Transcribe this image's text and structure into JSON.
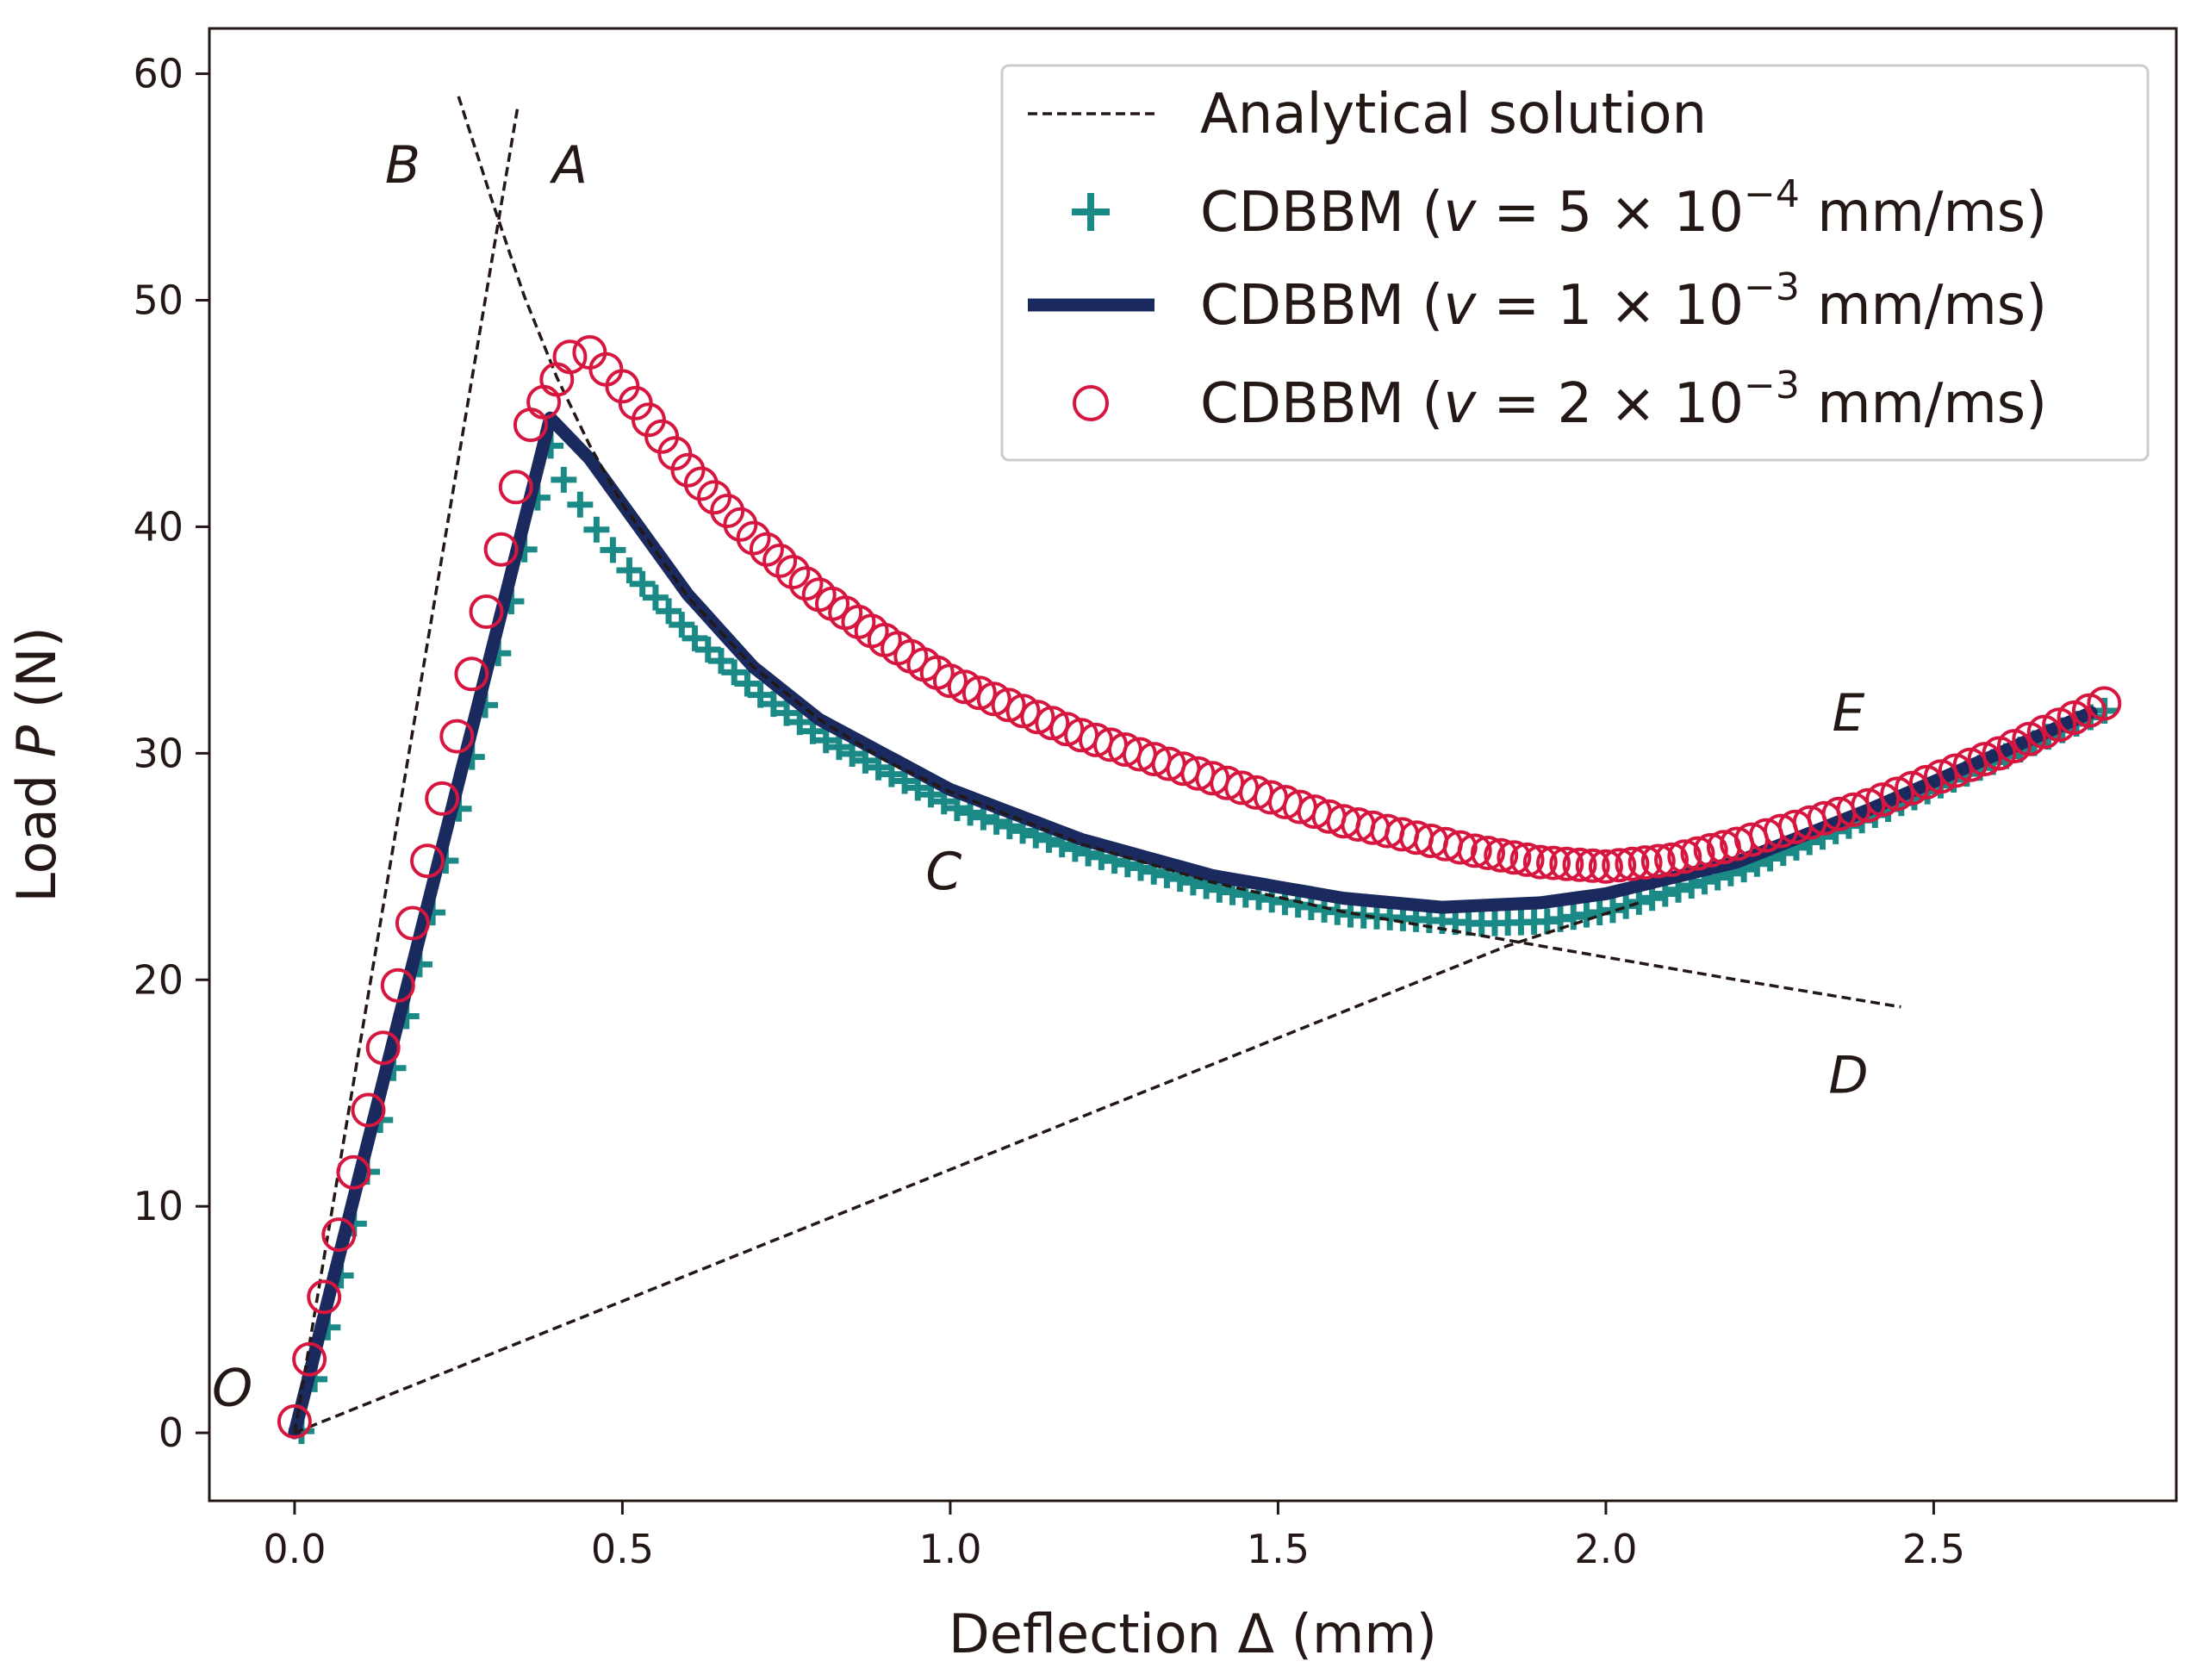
{
  "chart_data": {
    "type": "line",
    "title": "",
    "xlabel": "Deflection Δ (mm)",
    "ylabel_prefix": "Load ",
    "ylabel_var": "P",
    "ylabel_suffix": " (N)",
    "xlim": [
      -0.13,
      2.87
    ],
    "ylim": [
      -3,
      62
    ],
    "xticks": [
      0.0,
      0.5,
      1.0,
      1.5,
      2.0,
      2.5
    ],
    "xtick_labels": [
      "0.0",
      "0.5",
      "1.0",
      "1.5",
      "2.0",
      "2.5"
    ],
    "yticks": [
      0,
      10,
      20,
      30,
      40,
      50,
      60
    ],
    "ytick_labels": [
      "0",
      "10",
      "20",
      "30",
      "40",
      "50",
      "60"
    ],
    "legend_position": "top-right",
    "colors": {
      "analytical": "#231815",
      "slow": "#1b8a86",
      "mid": "#1a2a5e",
      "fast": "#d7163f",
      "axis": "#231815"
    },
    "point_labels": [
      {
        "text": "O",
        "x": -0.095,
        "y": 1.2
      },
      {
        "text": "B",
        "x": 0.165,
        "y": 55.2
      },
      {
        "text": "A",
        "x": 0.42,
        "y": 55.2
      },
      {
        "text": "C",
        "x": 0.99,
        "y": 24.0
      },
      {
        "text": "D",
        "x": 2.37,
        "y": 15.0
      },
      {
        "text": "E",
        "x": 2.37,
        "y": 31.0
      }
    ],
    "series": [
      {
        "name": "Analytical solution",
        "legend_text": "Analytical solution",
        "style": "dashed",
        "segments": [
          [
            [
              0.0,
              0.0
            ],
            [
              0.34,
              58.5
            ]
          ],
          [
            [
              0.25,
              59.0
            ],
            [
              0.3,
              54.5
            ],
            [
              0.35,
              50.2
            ],
            [
              0.4,
              46.6
            ],
            [
              0.45,
              43.6
            ],
            [
              0.5,
              41.0
            ],
            [
              0.6,
              36.9
            ],
            [
              0.7,
              33.8
            ],
            [
              0.8,
              31.5
            ],
            [
              0.9,
              29.7
            ],
            [
              1.0,
              28.3
            ],
            [
              1.2,
              26.0
            ],
            [
              1.4,
              24.3
            ],
            [
              1.6,
              23.0
            ],
            [
              1.8,
              22.0
            ],
            [
              2.0,
              21.0
            ],
            [
              2.2,
              20.0
            ],
            [
              2.45,
              18.8
            ]
          ],
          [
            [
              0.0,
              0.0
            ],
            [
              1.85,
              21.5
            ],
            [
              2.05,
              23.4
            ]
          ]
        ]
      },
      {
        "name": "CDBBM slow",
        "legend_prefix": "CDBBM (",
        "legend_math": "v = 5 × 10",
        "legend_exp": "−4",
        "legend_suffix": " mm/ms)",
        "style": "plus",
        "points": [
          [
            0.0,
            0.0
          ],
          [
            0.38,
            43.5
          ],
          [
            0.4,
            42.0
          ],
          [
            0.45,
            39.8
          ],
          [
            0.5,
            38.0
          ],
          [
            0.6,
            35.0
          ],
          [
            0.7,
            32.5
          ],
          [
            0.8,
            30.5
          ],
          [
            1.0,
            27.5
          ],
          [
            1.2,
            25.5
          ],
          [
            1.4,
            23.9
          ],
          [
            1.6,
            22.8
          ],
          [
            1.8,
            22.4
          ],
          [
            1.9,
            22.5
          ],
          [
            2.0,
            23.0
          ],
          [
            2.2,
            24.8
          ],
          [
            2.4,
            27.2
          ],
          [
            2.6,
            29.8
          ],
          [
            2.75,
            31.8
          ]
        ]
      },
      {
        "name": "CDBBM mid",
        "legend_prefix": "CDBBM (",
        "legend_math": "v = 1 × 10",
        "legend_exp": "−3",
        "legend_suffix": " mm/ms)",
        "style": "solid",
        "points": [
          [
            0.0,
            0.0
          ],
          [
            0.39,
            44.8
          ],
          [
            0.45,
            43.0
          ],
          [
            0.5,
            41.0
          ],
          [
            0.6,
            37.0
          ],
          [
            0.7,
            33.8
          ],
          [
            0.8,
            31.5
          ],
          [
            1.0,
            28.4
          ],
          [
            1.2,
            26.2
          ],
          [
            1.4,
            24.6
          ],
          [
            1.6,
            23.6
          ],
          [
            1.75,
            23.2
          ],
          [
            1.9,
            23.4
          ],
          [
            2.0,
            23.8
          ],
          [
            2.2,
            25.2
          ],
          [
            2.4,
            27.5
          ],
          [
            2.6,
            30.0
          ],
          [
            2.74,
            31.8
          ]
        ]
      },
      {
        "name": "CDBBM fast",
        "legend_prefix": "CDBBM (",
        "legend_math": "v = 2 × 10",
        "legend_exp": "−3",
        "legend_suffix": " mm/ms)",
        "style": "circle",
        "points": [
          [
            0.0,
            0.5
          ],
          [
            0.36,
            44.5
          ],
          [
            0.42,
            47.5
          ],
          [
            0.45,
            47.7
          ],
          [
            0.5,
            46.2
          ],
          [
            0.6,
            42.5
          ],
          [
            0.7,
            39.5
          ],
          [
            0.8,
            37.0
          ],
          [
            0.9,
            35.0
          ],
          [
            1.0,
            33.2
          ],
          [
            1.2,
            30.8
          ],
          [
            1.4,
            28.9
          ],
          [
            1.6,
            27.0
          ],
          [
            1.8,
            25.7
          ],
          [
            1.9,
            25.2
          ],
          [
            2.0,
            25.0
          ],
          [
            2.1,
            25.3
          ],
          [
            2.2,
            26.0
          ],
          [
            2.4,
            27.7
          ],
          [
            2.6,
            30.0
          ],
          [
            2.76,
            32.2
          ]
        ]
      }
    ]
  }
}
